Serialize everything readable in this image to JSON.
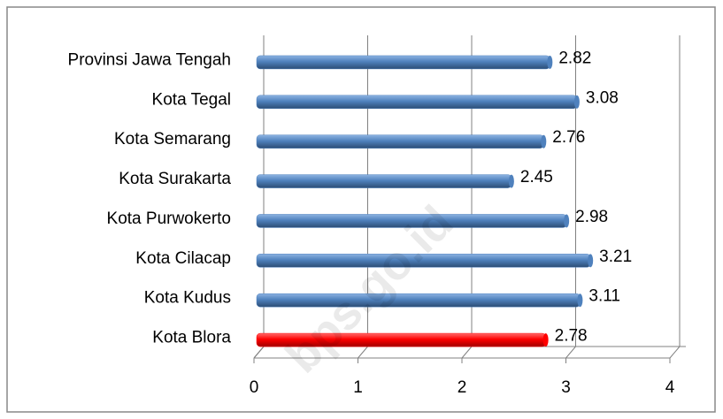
{
  "chart_data": {
    "type": "bar",
    "orientation": "horizontal",
    "categories": [
      "Provinsi Jawa Tengah",
      "Kota Tegal",
      "Kota Semarang",
      "Kota Surakarta",
      "Kota Purwokerto",
      "Kota Cilacap",
      "Kota Kudus",
      "Kota Blora"
    ],
    "values": [
      2.82,
      3.08,
      2.76,
      2.45,
      2.98,
      3.21,
      3.11,
      2.78
    ],
    "colors": [
      "#4f81bd",
      "#4f81bd",
      "#4f81bd",
      "#4f81bd",
      "#4f81bd",
      "#4f81bd",
      "#4f81bd",
      "#ff0000"
    ],
    "xlim": [
      0,
      4
    ],
    "xticks": [
      0,
      1,
      2,
      3,
      4
    ],
    "grid": true,
    "watermark": "bps.go.id"
  }
}
